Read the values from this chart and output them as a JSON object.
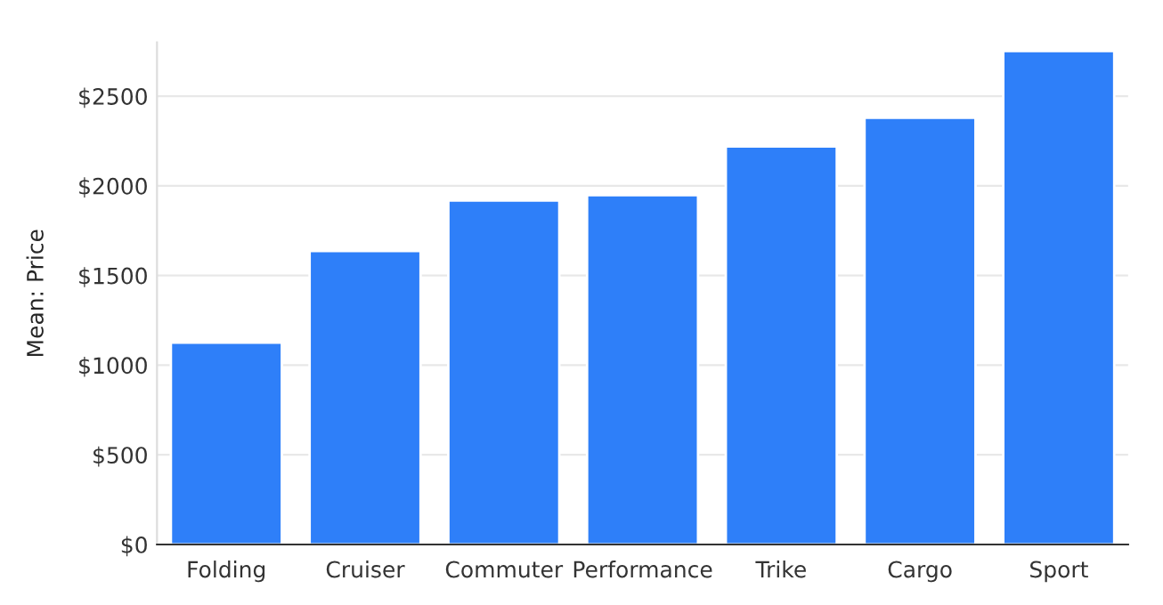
{
  "chart_data": {
    "type": "bar",
    "ylabel": "Mean: Price",
    "categories": [
      "Folding",
      "Cruiser",
      "Commuter",
      "Performance",
      "Trike",
      "Cargo",
      "Sport"
    ],
    "values": [
      1125,
      1637,
      1918,
      1948,
      2219,
      2380,
      2751
    ],
    "color": "#2e7ff9",
    "ylim": [
      0,
      2800
    ],
    "yticks": [
      {
        "value": 0,
        "label": "$0"
      },
      {
        "value": 500,
        "label": "$500"
      },
      {
        "value": 1000,
        "label": "$1000"
      },
      {
        "value": 1500,
        "label": "$1500"
      },
      {
        "value": 2000,
        "label": "$2000"
      },
      {
        "value": 2500,
        "label": "$2500"
      }
    ],
    "grid": "y"
  }
}
